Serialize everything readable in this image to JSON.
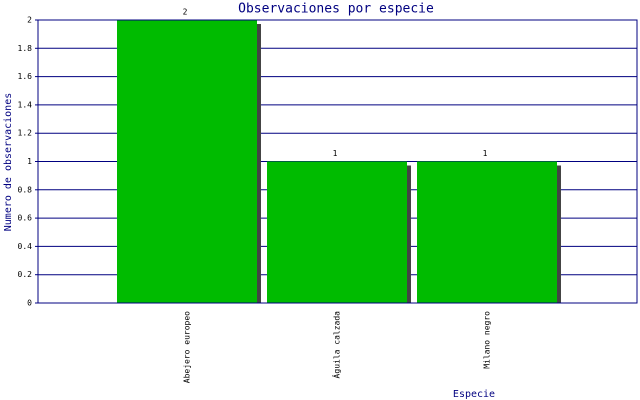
{
  "chart_data": {
    "type": "bar",
    "title": "Observaciones por especie",
    "x_label": "Especie",
    "y_label": "Numero de observaciones",
    "categories": [
      "Abejero europeo",
      "Águila calzada",
      "Milano negro"
    ],
    "values": [
      2,
      1,
      1
    ],
    "color": "#00bb00",
    "ylim": [
      0,
      2
    ],
    "yticks": [
      0,
      0.2,
      0.4,
      0.6,
      0.8,
      1,
      1.2,
      1.4,
      1.6,
      1.8,
      2
    ],
    "grid": true
  }
}
